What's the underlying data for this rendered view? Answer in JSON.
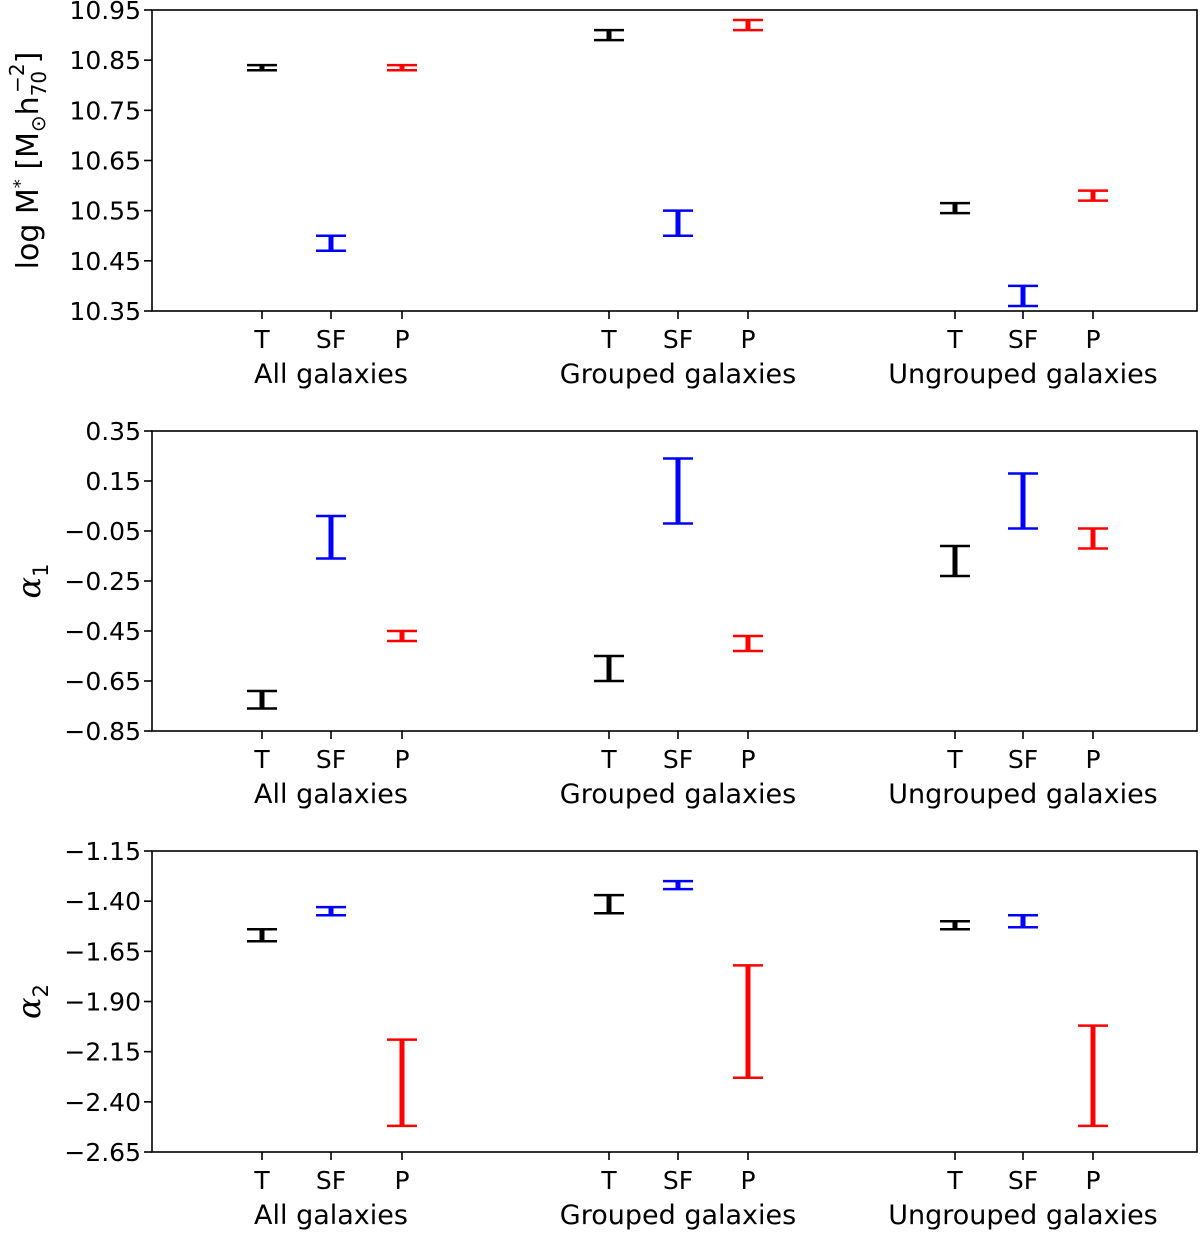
{
  "colors": {
    "T": "#000000",
    "SF": "#0000ff",
    "P": "#ff0000"
  },
  "chart_data": [
    {
      "type": "errorbar",
      "ylabel": {
        "parts": [
          "log M",
          "*",
          " [M",
          "⊙",
          "h",
          "70",
          "−2",
          "]"
        ]
      },
      "ylim": [
        10.35,
        10.95
      ],
      "yticks": [
        "10.35",
        "10.45",
        "10.55",
        "10.65",
        "10.75",
        "10.85",
        "10.95"
      ],
      "categories": [
        "T",
        "SF",
        "P",
        "T",
        "SF",
        "P",
        "T",
        "SF",
        "P"
      ],
      "groups": [
        "All galaxies",
        "Grouped galaxies",
        "Ungrouped galaxies"
      ],
      "points": [
        {
          "group": "All galaxies",
          "cat": "T",
          "low": 10.83,
          "high": 10.84
        },
        {
          "group": "All galaxies",
          "cat": "SF",
          "low": 10.47,
          "high": 10.5
        },
        {
          "group": "All galaxies",
          "cat": "P",
          "low": 10.83,
          "high": 10.84
        },
        {
          "group": "Grouped galaxies",
          "cat": "T",
          "low": 10.89,
          "high": 10.91
        },
        {
          "group": "Grouped galaxies",
          "cat": "SF",
          "low": 10.5,
          "high": 10.55
        },
        {
          "group": "Grouped galaxies",
          "cat": "P",
          "low": 10.91,
          "high": 10.93
        },
        {
          "group": "Ungrouped galaxies",
          "cat": "T",
          "low": 10.545,
          "high": 10.565
        },
        {
          "group": "Ungrouped galaxies",
          "cat": "SF",
          "low": 10.36,
          "high": 10.4
        },
        {
          "group": "Ungrouped galaxies",
          "cat": "P",
          "low": 10.57,
          "high": 10.59
        }
      ]
    },
    {
      "type": "errorbar",
      "ylabel": {
        "symbol": "α",
        "sub": "1"
      },
      "ylim": [
        -0.85,
        0.35
      ],
      "yticks": [
        "−0.85",
        "−0.65",
        "−0.45",
        "−0.25",
        "−0.05",
        "0.15",
        "0.35"
      ],
      "categories": [
        "T",
        "SF",
        "P",
        "T",
        "SF",
        "P",
        "T",
        "SF",
        "P"
      ],
      "groups": [
        "All galaxies",
        "Grouped galaxies",
        "Ungrouped galaxies"
      ],
      "points": [
        {
          "group": "All galaxies",
          "cat": "T",
          "low": -0.76,
          "high": -0.69
        },
        {
          "group": "All galaxies",
          "cat": "SF",
          "low": -0.16,
          "high": 0.01
        },
        {
          "group": "All galaxies",
          "cat": "P",
          "low": -0.49,
          "high": -0.45
        },
        {
          "group": "Grouped galaxies",
          "cat": "T",
          "low": -0.65,
          "high": -0.55
        },
        {
          "group": "Grouped galaxies",
          "cat": "SF",
          "low": -0.02,
          "high": 0.24
        },
        {
          "group": "Grouped galaxies",
          "cat": "P",
          "low": -0.53,
          "high": -0.47
        },
        {
          "group": "Ungrouped galaxies",
          "cat": "T",
          "low": -0.23,
          "high": -0.11
        },
        {
          "group": "Ungrouped galaxies",
          "cat": "SF",
          "low": -0.04,
          "high": 0.18
        },
        {
          "group": "Ungrouped galaxies",
          "cat": "P",
          "low": -0.12,
          "high": -0.04
        }
      ]
    },
    {
      "type": "errorbar",
      "ylabel": {
        "symbol": "α",
        "sub": "2"
      },
      "ylim": [
        -2.65,
        -1.15
      ],
      "yticks": [
        "−2.65",
        "−2.40",
        "−2.15",
        "−1.90",
        "−1.65",
        "−1.40",
        "−1.15"
      ],
      "categories": [
        "T",
        "SF",
        "P",
        "T",
        "SF",
        "P",
        "T",
        "SF",
        "P"
      ],
      "groups": [
        "All galaxies",
        "Grouped galaxies",
        "Ungrouped galaxies"
      ],
      "points": [
        {
          "group": "All galaxies",
          "cat": "T",
          "low": -1.6,
          "high": -1.54
        },
        {
          "group": "All galaxies",
          "cat": "SF",
          "low": -1.47,
          "high": -1.43
        },
        {
          "group": "All galaxies",
          "cat": "P",
          "low": -2.52,
          "high": -2.09
        },
        {
          "group": "Grouped galaxies",
          "cat": "T",
          "low": -1.46,
          "high": -1.37
        },
        {
          "group": "Grouped galaxies",
          "cat": "SF",
          "low": -1.34,
          "high": -1.3
        },
        {
          "group": "Grouped galaxies",
          "cat": "P",
          "low": -2.28,
          "high": -1.72
        },
        {
          "group": "Ungrouped galaxies",
          "cat": "T",
          "low": -1.54,
          "high": -1.5
        },
        {
          "group": "Ungrouped galaxies",
          "cat": "SF",
          "low": -1.53,
          "high": -1.47
        },
        {
          "group": "Ungrouped galaxies",
          "cat": "P",
          "low": -2.52,
          "high": -2.02
        }
      ]
    }
  ]
}
